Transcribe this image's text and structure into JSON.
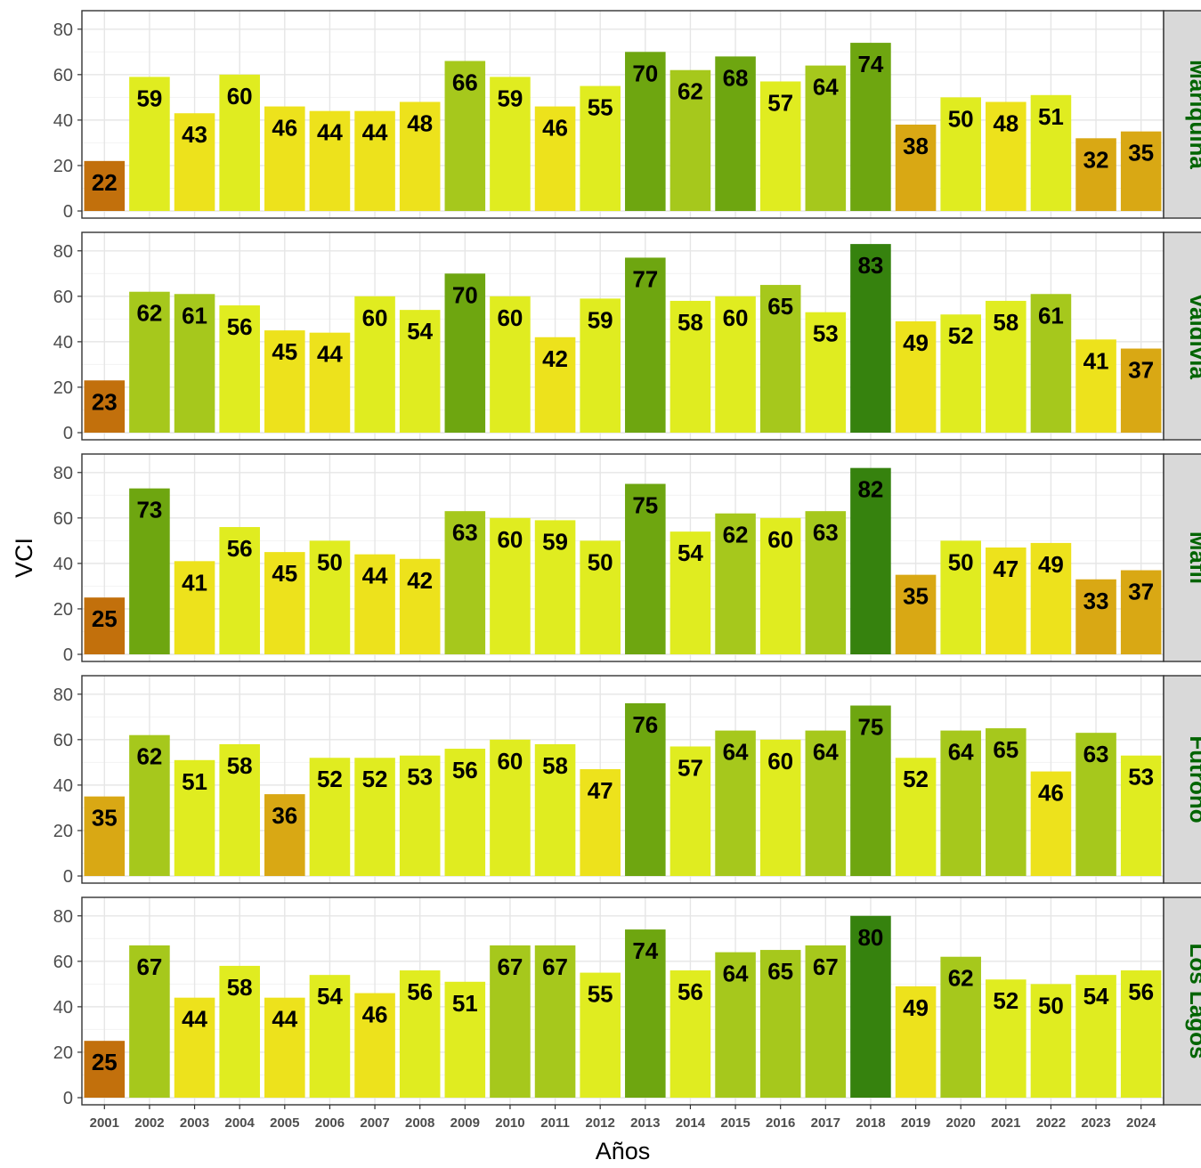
{
  "chart_data": {
    "type": "bar",
    "xlabel": "Años",
    "ylabel": "VCI",
    "ylim": [
      0,
      85
    ],
    "yticks": [
      0,
      20,
      40,
      60,
      80
    ],
    "grid": true,
    "strip_color": "#006400",
    "strip_bg": "#d9d9d9",
    "categories": [
      "2001",
      "2002",
      "2003",
      "2004",
      "2005",
      "2006",
      "2007",
      "2008",
      "2009",
      "2010",
      "2011",
      "2012",
      "2013",
      "2014",
      "2015",
      "2016",
      "2017",
      "2018",
      "2019",
      "2020",
      "2021",
      "2022",
      "2023",
      "2024"
    ],
    "series": [
      {
        "name": "Mariquina",
        "values": [
          22,
          59,
          43,
          60,
          46,
          44,
          44,
          48,
          66,
          59,
          46,
          55,
          70,
          62,
          68,
          57,
          64,
          74,
          38,
          50,
          48,
          51,
          32,
          35
        ]
      },
      {
        "name": "Valdivia",
        "values": [
          23,
          62,
          61,
          56,
          45,
          44,
          60,
          54,
          70,
          60,
          42,
          59,
          77,
          58,
          60,
          65,
          53,
          83,
          49,
          52,
          58,
          61,
          41,
          37
        ]
      },
      {
        "name": "Máfil",
        "values": [
          25,
          73,
          41,
          56,
          45,
          50,
          44,
          42,
          63,
          60,
          59,
          50,
          75,
          54,
          62,
          60,
          63,
          82,
          35,
          50,
          47,
          49,
          33,
          37
        ]
      },
      {
        "name": "Futrono",
        "values": [
          35,
          62,
          51,
          58,
          36,
          52,
          52,
          53,
          56,
          60,
          58,
          47,
          76,
          57,
          64,
          60,
          64,
          75,
          52,
          64,
          65,
          46,
          63,
          53
        ]
      },
      {
        "name": "Los Lagos",
        "values": [
          25,
          67,
          44,
          58,
          44,
          54,
          46,
          56,
          51,
          67,
          67,
          55,
          74,
          56,
          64,
          65,
          67,
          80,
          49,
          62,
          52,
          50,
          54,
          56
        ]
      }
    ]
  }
}
